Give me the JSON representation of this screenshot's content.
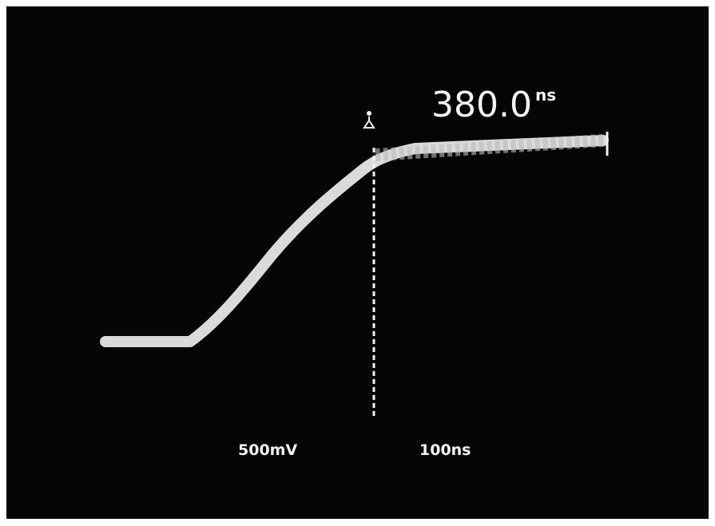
{
  "readout": {
    "value": "380.0",
    "unit": "ns"
  },
  "scale": {
    "volts": "500mV",
    "time": "100ns"
  }
}
